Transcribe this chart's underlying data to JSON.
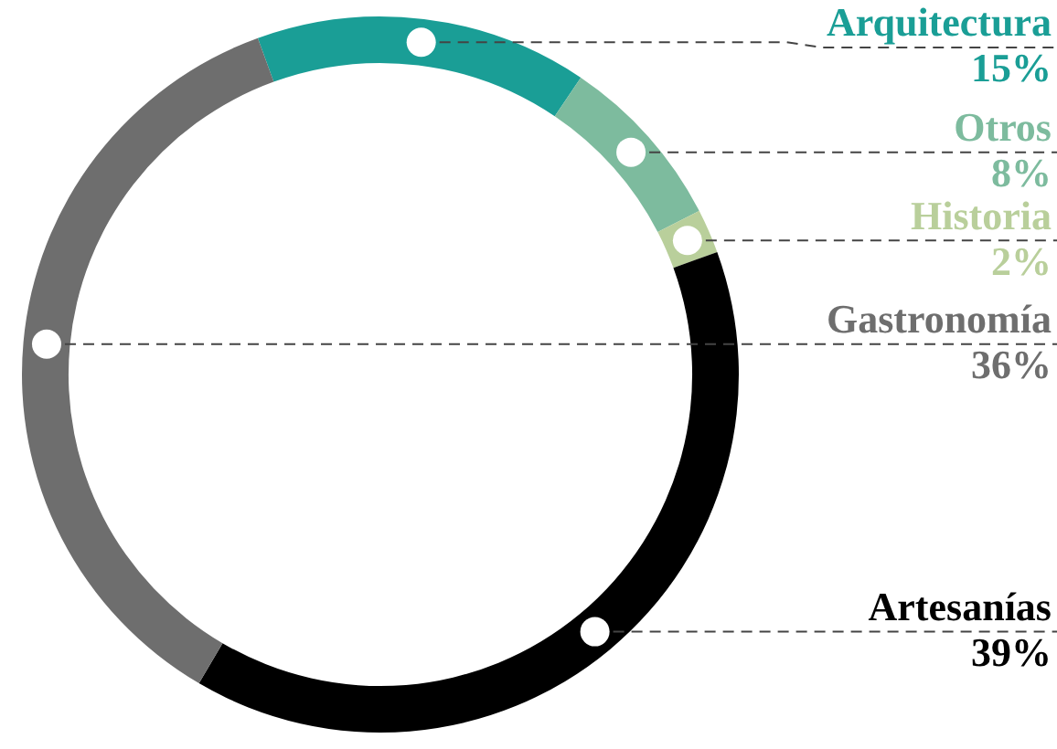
{
  "chart_data": {
    "type": "donut",
    "categories": [
      "Arquitectura",
      "Otros",
      "Historia",
      "Artesanías",
      "Gastronomía"
    ],
    "values": [
      15,
      8,
      2,
      39,
      36
    ],
    "value_labels": [
      "15%",
      "8%",
      "2%",
      "39%",
      "36%"
    ],
    "colors": [
      "#1a9e96",
      "#7dbb9e",
      "#b9cf9b",
      "#000000",
      "#6e6e6e"
    ],
    "legend": false
  }
}
